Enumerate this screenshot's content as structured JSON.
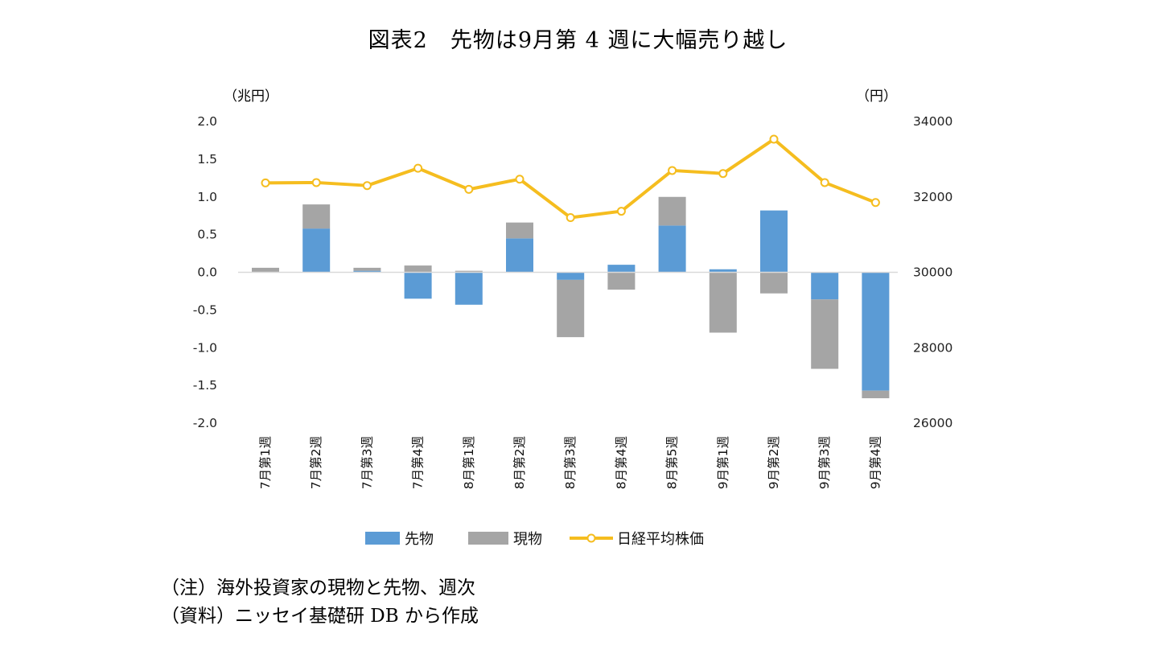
{
  "title": "図表2　先物は9月第 4 週に大幅売り越し",
  "notes": [
    "（注）海外投資家の現物と先物、週次",
    "（資料）ニッセイ基礎研 DB から作成"
  ],
  "colors": {
    "futures": "#5B9BD5",
    "spot": "#A5A5A5",
    "nikkei": "#F5BD1F",
    "axis": "#D9D9D9"
  },
  "chart_data": {
    "type": "bar",
    "stacked": true,
    "categories": [
      "7月第1週",
      "7月第2週",
      "7月第3週",
      "7月第4週",
      "8月第1週",
      "8月第2週",
      "8月第3週",
      "8月第4週",
      "8月第5週",
      "9月第1週",
      "9月第2週",
      "9月第3週",
      "9月第4週"
    ],
    "series": [
      {
        "name": "先物",
        "axis": "left",
        "kind": "bar",
        "values": [
          0.0,
          0.58,
          0.02,
          -0.35,
          -0.43,
          0.45,
          -0.1,
          0.1,
          0.62,
          0.04,
          0.82,
          -0.36,
          -1.57
        ]
      },
      {
        "name": "現物",
        "axis": "left",
        "kind": "bar",
        "values": [
          0.06,
          0.32,
          0.04,
          0.09,
          0.02,
          0.21,
          -0.76,
          -0.23,
          0.38,
          -0.8,
          -0.28,
          -0.92,
          -0.1
        ]
      },
      {
        "name": "日経平均株価",
        "axis": "right",
        "kind": "line",
        "values": [
          32370,
          32380,
          32300,
          32760,
          32200,
          32470,
          31450,
          31620,
          32700,
          32620,
          33530,
          32380,
          31850
        ]
      }
    ],
    "ylabel_left": "（兆円）",
    "ylabel_right": "（円）",
    "ylim_left": [
      -2.0,
      2.0
    ],
    "ylim_right": [
      26000,
      34000
    ],
    "yticks_left": [
      "2.0",
      "1.5",
      "1.0",
      "0.5",
      "0.0",
      "-0.5",
      "-1.0",
      "-1.5",
      "-2.0"
    ],
    "yticks_right": [
      "34000",
      "32000",
      "30000",
      "28000",
      "26000"
    ],
    "grid": false,
    "legend_position": "bottom"
  }
}
